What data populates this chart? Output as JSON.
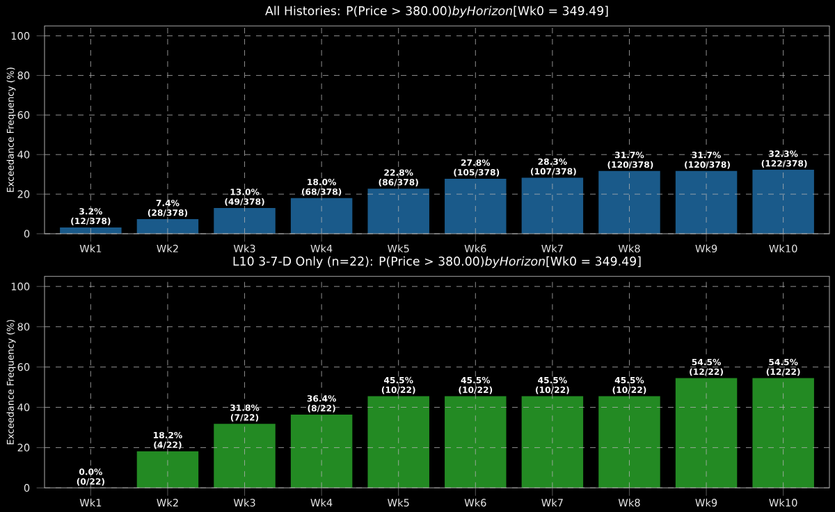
{
  "chart_data": [
    {
      "type": "bar",
      "title": "All Histories: P(Price > 380.00)*byHorizon*[Wk0 = 349.49]",
      "ylabel": "Exceedance Frequency (%)",
      "categories": [
        "Wk1",
        "Wk2",
        "Wk3",
        "Wk4",
        "Wk5",
        "Wk6",
        "Wk7",
        "Wk8",
        "Wk9",
        "Wk10"
      ],
      "values": [
        3.2,
        7.4,
        13.0,
        18.0,
        22.8,
        27.8,
        28.3,
        31.7,
        31.7,
        32.3
      ],
      "value_labels": [
        "3.2% (12/378)",
        "7.4% (28/378)",
        "13.0% (49/378)",
        "18.0% (68/378)",
        "22.8% (86/378)",
        "27.8% (105/378)",
        "28.3% (107/378)",
        "31.7% (120/378)",
        "31.7% (120/378)",
        "32.3% (122/378)"
      ],
      "color": "#1a5a8a",
      "ylim": [
        0,
        105
      ],
      "yticks": [
        0,
        20,
        40,
        60,
        80,
        100
      ],
      "grid": true
    },
    {
      "type": "bar",
      "title": "L10 3-7-D Only (n=22): P(Price > 380.00)*byHorizon*[Wk0 = 349.49]",
      "ylabel": "Exceedance Frequency (%)",
      "categories": [
        "Wk1",
        "Wk2",
        "Wk3",
        "Wk4",
        "Wk5",
        "Wk6",
        "Wk7",
        "Wk8",
        "Wk9",
        "Wk10"
      ],
      "values": [
        0.0,
        18.2,
        31.8,
        36.4,
        45.5,
        45.5,
        45.5,
        45.5,
        54.5,
        54.5
      ],
      "value_labels": [
        "0.0% (0/22)",
        "18.2% (4/22)",
        "31.8% (7/22)",
        "36.4% (8/22)",
        "45.5% (10/22)",
        "45.5% (10/22)",
        "45.5% (10/22)",
        "45.5% (10/22)",
        "54.5% (12/22)",
        "54.5% (12/22)"
      ],
      "color": "#238a23",
      "ylim": [
        0,
        105
      ],
      "yticks": [
        0,
        20,
        40,
        60,
        80,
        100
      ],
      "grid": true
    }
  ]
}
